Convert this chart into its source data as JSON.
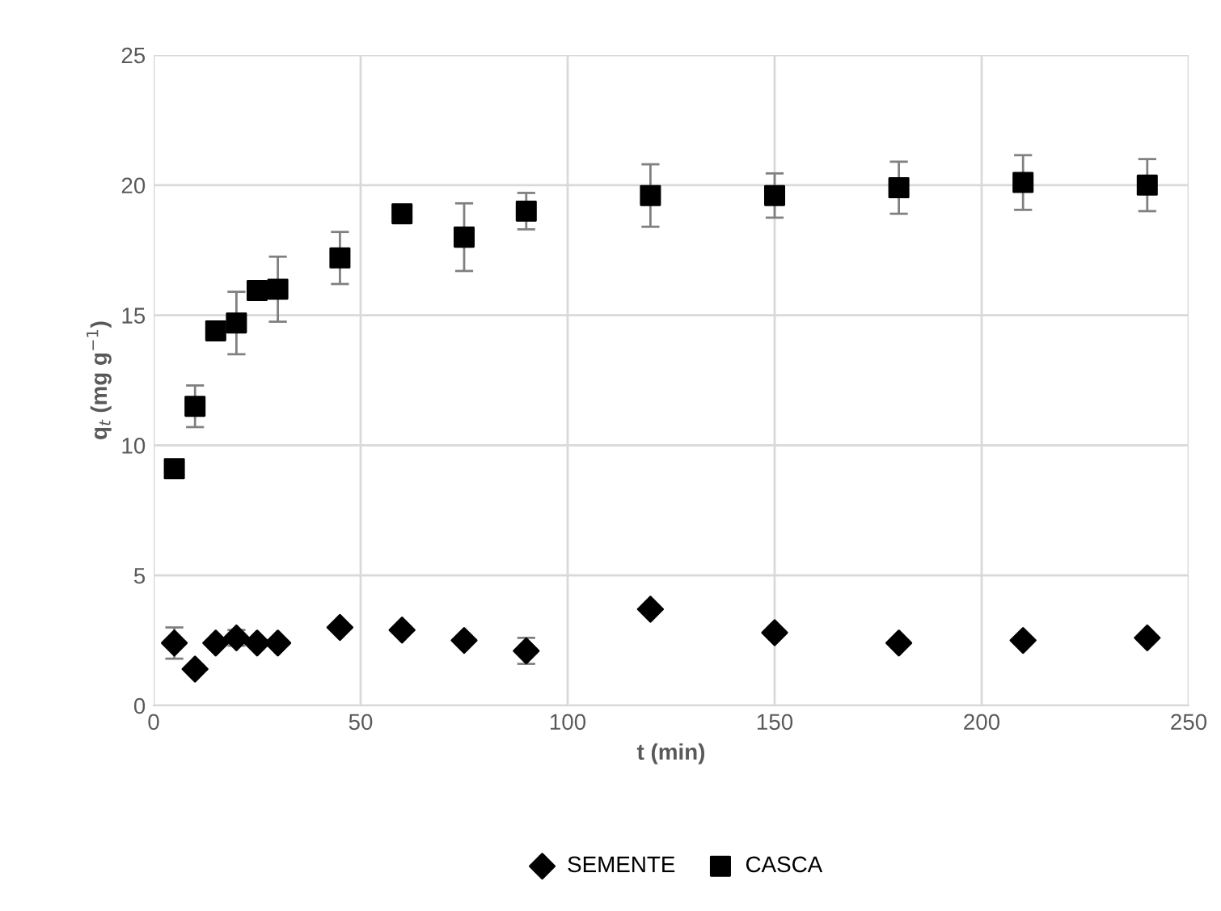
{
  "chart_data": {
    "type": "scatter",
    "xlabel": "t (min)",
    "ylabel": "q$_{t}$ (mg g$^{−1}$)",
    "x": [
      5,
      10,
      15,
      20,
      25,
      30,
      45,
      60,
      75,
      90,
      120,
      150,
      180,
      210,
      240
    ],
    "xlim": [
      0,
      250
    ],
    "xticks": [
      0,
      50,
      100,
      150,
      200,
      250
    ],
    "ylim": [
      0,
      25
    ],
    "yticks": [
      0,
      5,
      10,
      15,
      20,
      25
    ],
    "grid": true,
    "legend": "bottom",
    "series": [
      {
        "name": "SEMENTE",
        "color": "#000000",
        "marker": "diamond",
        "values": [
          2.4,
          1.4,
          2.4,
          2.6,
          2.4,
          2.4,
          3.0,
          2.9,
          2.5,
          2.1,
          3.7,
          2.8,
          2.4,
          2.5,
          2.6
        ],
        "errors": [
          0.6,
          null,
          null,
          0.3,
          null,
          null,
          null,
          null,
          null,
          0.5,
          null,
          null,
          null,
          null,
          null
        ]
      },
      {
        "name": "CASCA",
        "color": "#000000",
        "marker": "square",
        "values": [
          9.1,
          11.5,
          14.4,
          14.7,
          15.95,
          16.0,
          17.2,
          18.9,
          18.0,
          19.0,
          19.6,
          19.6,
          19.9,
          20.1,
          20.0
        ],
        "errors": [
          null,
          0.8,
          null,
          1.2,
          0.35,
          1.25,
          1.0,
          null,
          1.3,
          0.7,
          1.2,
          0.85,
          1.0,
          1.05,
          1.0
        ]
      }
    ]
  }
}
